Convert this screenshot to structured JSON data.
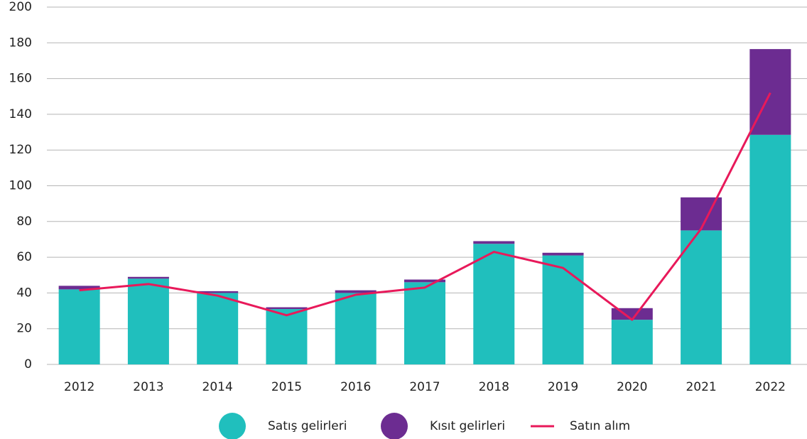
{
  "chart_data": {
    "type": "bar",
    "stacked": true,
    "categories": [
      "2012",
      "2013",
      "2014",
      "2015",
      "2016",
      "2017",
      "2018",
      "2019",
      "2020",
      "2021",
      "2022"
    ],
    "series": [
      {
        "name": "Satış gelirleri",
        "type": "bar",
        "color": "#20bfbd",
        "values": [
          42,
          48,
          40,
          31,
          40,
          46,
          67.5,
          61,
          25,
          75,
          128.5
        ]
      },
      {
        "name": "Kısıt gelirleri",
        "type": "bar",
        "color": "#6c2c91",
        "values": [
          2,
          1,
          1,
          1,
          1.5,
          1.5,
          1.5,
          1.5,
          6.5,
          18.5,
          48
        ]
      },
      {
        "name": "Satın alım",
        "type": "line",
        "color": "#e8195a",
        "values": [
          41.5,
          45,
          38.5,
          27.5,
          39,
          43,
          63,
          54,
          25,
          76,
          152
        ]
      }
    ],
    "ylim": [
      0,
      200
    ],
    "yticks": [
      0,
      20,
      40,
      60,
      80,
      100,
      120,
      140,
      160,
      180,
      200
    ],
    "grid": true,
    "legend": "bottom"
  }
}
